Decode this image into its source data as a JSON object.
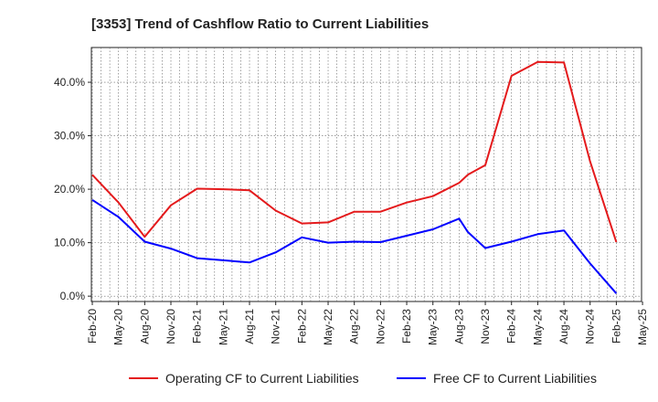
{
  "chart_data": {
    "type": "line",
    "title": "[3353]  Trend of Cashflow Ratio to Current Liabilities",
    "xlabel": "",
    "ylabel": "",
    "x_ticks": [
      "Feb-20",
      "May-20",
      "Aug-20",
      "Nov-20",
      "Feb-21",
      "May-21",
      "Aug-21",
      "Nov-21",
      "Feb-22",
      "May-22",
      "Aug-22",
      "Nov-22",
      "Feb-23",
      "May-23",
      "Aug-23",
      "Nov-23",
      "Feb-24",
      "May-24",
      "Aug-24",
      "Nov-24",
      "Feb-25",
      "May-25"
    ],
    "y_ticks": [
      "0.0%",
      "10.0%",
      "20.0%",
      "30.0%",
      "40.0%"
    ],
    "ylim": [
      -1,
      46.5
    ],
    "grid": true,
    "legend": "bottom",
    "series": [
      {
        "name": "Operating CF to Current Liabilities",
        "color": "#e41a1c",
        "points": [
          [
            "Feb-20",
            22.7
          ],
          [
            "May-20",
            17.5
          ],
          [
            "Aug-20",
            11.1
          ],
          [
            "Nov-20",
            17.0
          ],
          [
            "Feb-21",
            20.1
          ],
          [
            "May-21",
            20.0
          ],
          [
            "Aug-21",
            19.8
          ],
          [
            "Nov-21",
            16.0
          ],
          [
            "Feb-22",
            13.6
          ],
          [
            "May-22",
            13.8
          ],
          [
            "Aug-22",
            15.8
          ],
          [
            "Nov-22",
            15.8
          ],
          [
            "Feb-23",
            17.5
          ],
          [
            "May-23",
            18.7
          ],
          [
            "Aug-23",
            21.2
          ],
          [
            "Sep-23",
            22.7
          ],
          [
            "Nov-23",
            24.5
          ],
          [
            "Feb-24",
            41.2
          ],
          [
            "May-24",
            43.8
          ],
          [
            "Aug-24",
            43.7
          ],
          [
            "Nov-24",
            25.2
          ],
          [
            "Feb-25",
            10.1
          ]
        ]
      },
      {
        "name": "Free CF to Current Liabilities",
        "color": "#0000ff",
        "points": [
          [
            "Feb-20",
            18.0
          ],
          [
            "May-20",
            14.8
          ],
          [
            "Aug-20",
            10.2
          ],
          [
            "Nov-20",
            8.9
          ],
          [
            "Feb-21",
            7.1
          ],
          [
            "May-21",
            6.7
          ],
          [
            "Aug-21",
            6.3
          ],
          [
            "Nov-21",
            8.2
          ],
          [
            "Feb-22",
            11.0
          ],
          [
            "May-22",
            10.0
          ],
          [
            "Aug-22",
            10.2
          ],
          [
            "Nov-22",
            10.1
          ],
          [
            "Feb-23",
            11.3
          ],
          [
            "May-23",
            12.5
          ],
          [
            "Aug-23",
            14.5
          ],
          [
            "Sep-23",
            12.0
          ],
          [
            "Nov-23",
            9.0
          ],
          [
            "Feb-24",
            10.2
          ],
          [
            "May-24",
            11.6
          ],
          [
            "Aug-24",
            12.3
          ],
          [
            "Nov-24",
            6.1
          ],
          [
            "Feb-25",
            0.5
          ]
        ]
      }
    ]
  }
}
